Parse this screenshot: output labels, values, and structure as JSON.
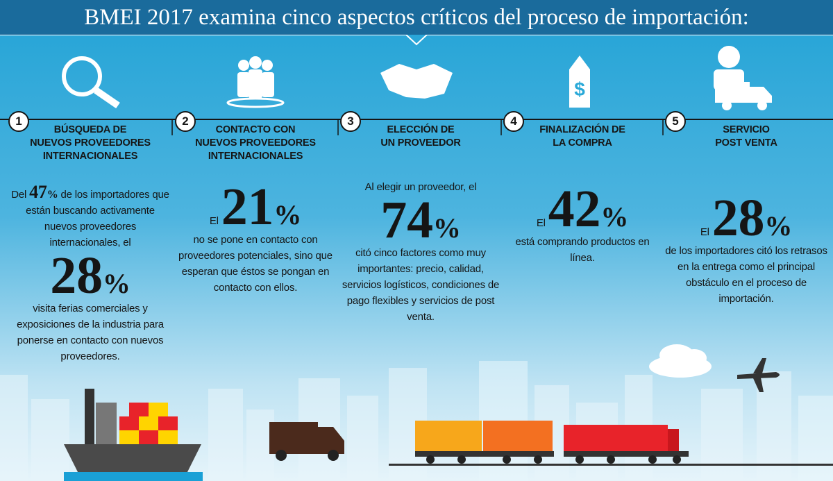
{
  "header": {
    "title": "BMEI 2017 examina cinco aspectos críticos del proceso de importación:"
  },
  "steps": [
    {
      "number": "1",
      "heading": [
        "BÚSQUEDA DE",
        "NUEVOS PROVEEDORES",
        "INTERNACIONALES"
      ],
      "intro_prefix": "Del",
      "intro_value": "47",
      "intro_unit": "%",
      "intro_suffix": "de los importadores que están buscando activamente nuevos proveedores internacionales, el",
      "value": "28",
      "unit": "%",
      "body": "visita ferias comerciales y exposiciones de la industria para ponerse en contacto con nuevos proveedores."
    },
    {
      "number": "2",
      "heading": [
        "CONTACTO CON",
        "NUEVOS PROVEEDORES",
        "INTERNACIONALES"
      ],
      "intro": "El",
      "value": "21",
      "unit": "%",
      "body": "no se pone en contacto con proveedores potenciales, sino que esperan que éstos se pongan en contacto con ellos."
    },
    {
      "number": "3",
      "heading": [
        "ELECCIÓN DE",
        "UN PROVEEDOR"
      ],
      "intro": "Al elegir un proveedor, el",
      "value": "74",
      "unit": "%",
      "body": "citó cinco factores como muy importantes: precio, calidad, servicios logísticos, condiciones de pago flexibles y servicios de post venta."
    },
    {
      "number": "4",
      "heading": [
        "FINALIZACIÓN DE",
        "LA COMPRA"
      ],
      "intro": "El",
      "value": "42",
      "unit": "%",
      "body": "está comprando productos en línea."
    },
    {
      "number": "5",
      "heading": [
        "SERVICIO",
        "POST VENTA"
      ],
      "intro": "El",
      "value": "28",
      "unit": "%",
      "body": "de los importadores citó los retrasos en la entrega como el principal obstáculo en el proceso de importación."
    }
  ]
}
